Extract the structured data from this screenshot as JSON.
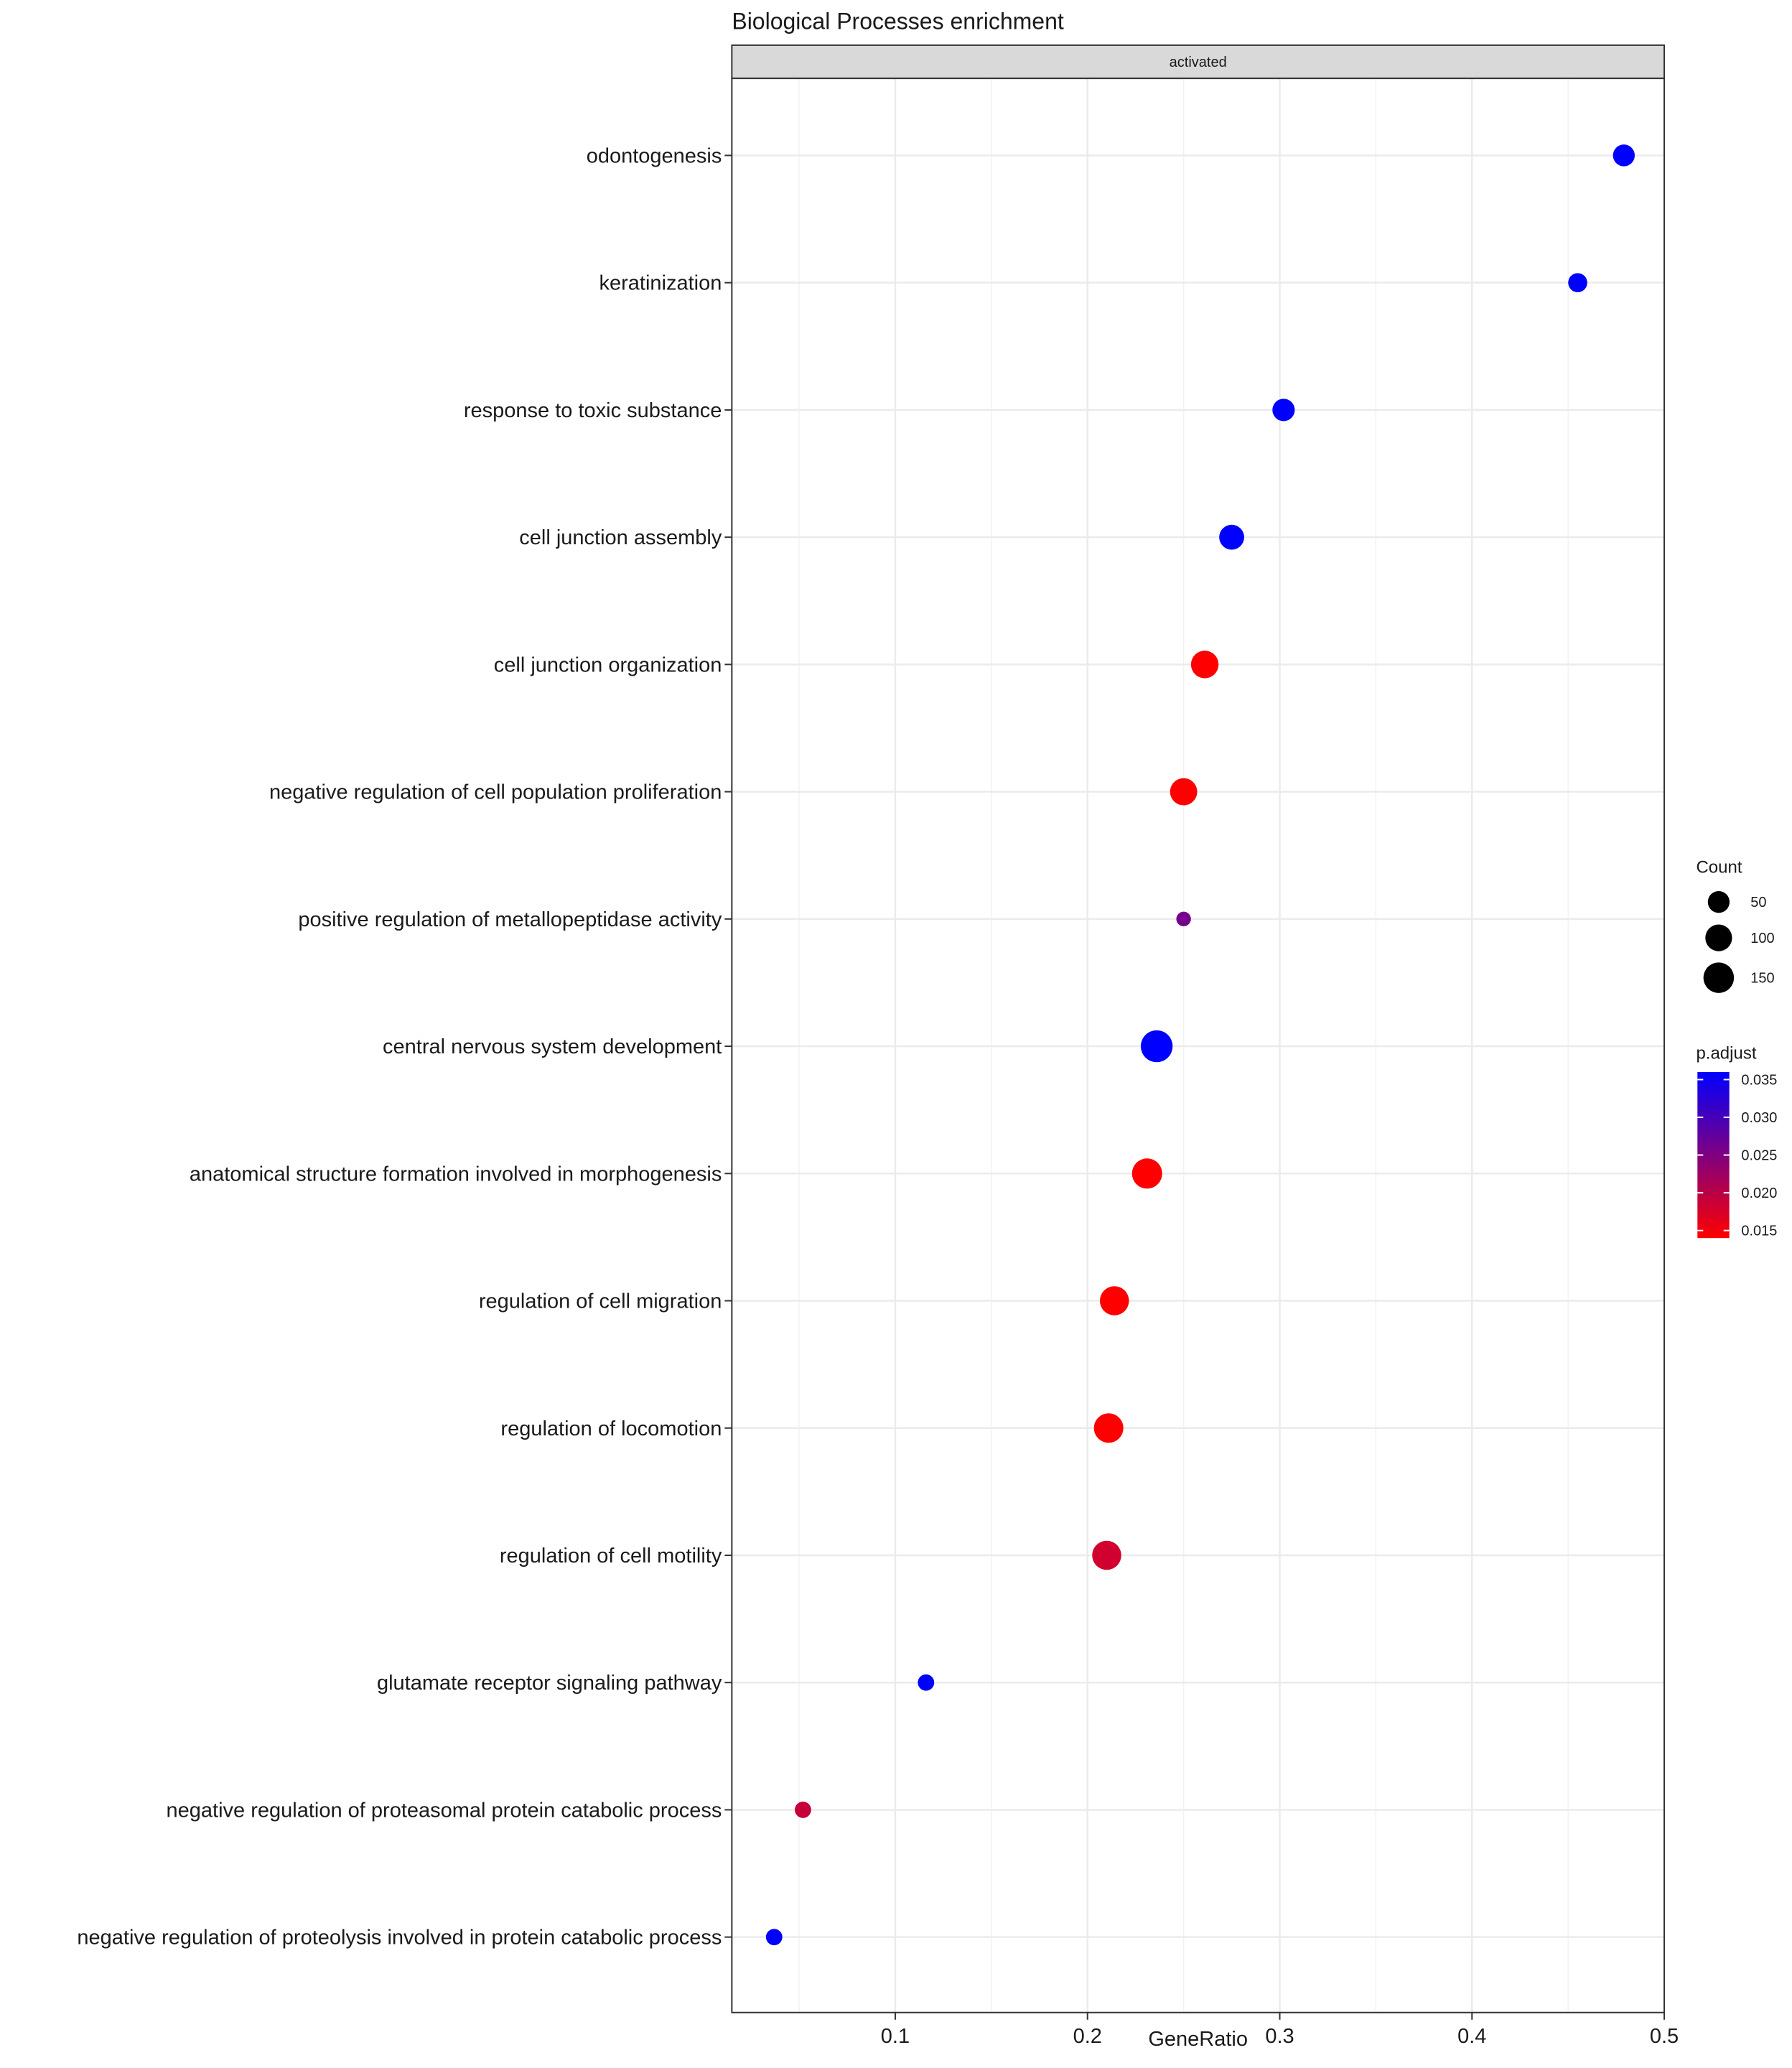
{
  "chart_data": {
    "type": "scatter",
    "title": "Biological Processes enrichment",
    "facet": "activated",
    "xlabel": "GeneRatio",
    "ylabel": "",
    "xlim": [
      0.015,
      0.5
    ],
    "xticks": [
      0.1,
      0.2,
      0.3,
      0.4,
      0.5
    ],
    "xtick_labels": [
      "0.1",
      "0.2",
      "0.3",
      "0.4",
      "0.5"
    ],
    "grid": true,
    "points": [
      {
        "term": "odontogenesis",
        "gene_ratio": 0.479,
        "count": 50,
        "p_adjust": 0.036
      },
      {
        "term": "keratinization",
        "gene_ratio": 0.455,
        "count": 30,
        "p_adjust": 0.036
      },
      {
        "term": "response to toxic substance",
        "gene_ratio": 0.302,
        "count": 55,
        "p_adjust": 0.036
      },
      {
        "term": "cell junction assembly",
        "gene_ratio": 0.275,
        "count": 80,
        "p_adjust": 0.036
      },
      {
        "term": "cell junction organization",
        "gene_ratio": 0.261,
        "count": 110,
        "p_adjust": 0.014
      },
      {
        "term": "negative regulation of cell population proliferation",
        "gene_ratio": 0.25,
        "count": 105,
        "p_adjust": 0.014
      },
      {
        "term": "positive regulation of metallopeptidase activity",
        "gene_ratio": 0.25,
        "count": 8,
        "p_adjust": 0.026
      },
      {
        "term": "central nervous system development",
        "gene_ratio": 0.236,
        "count": 170,
        "p_adjust": 0.036
      },
      {
        "term": "anatomical structure formation involved in morphogenesis",
        "gene_ratio": 0.231,
        "count": 145,
        "p_adjust": 0.014
      },
      {
        "term": "regulation of cell migration",
        "gene_ratio": 0.214,
        "count": 130,
        "p_adjust": 0.014
      },
      {
        "term": "regulation of locomotion",
        "gene_ratio": 0.211,
        "count": 135,
        "p_adjust": 0.014
      },
      {
        "term": "regulation of cell motility",
        "gene_ratio": 0.21,
        "count": 130,
        "p_adjust": 0.018
      },
      {
        "term": "glutamate receptor signaling pathway",
        "gene_ratio": 0.116,
        "count": 15,
        "p_adjust": 0.036
      },
      {
        "term": "negative regulation of proteasomal protein catabolic process",
        "gene_ratio": 0.052,
        "count": 15,
        "p_adjust": 0.019
      },
      {
        "term": "negative regulation of proteolysis involved in protein catabolic process",
        "gene_ratio": 0.037,
        "count": 15,
        "p_adjust": 0.036
      }
    ],
    "legend_size": {
      "title": "Count",
      "values": [
        50,
        100,
        150
      ],
      "labels": [
        "50",
        "100",
        "150"
      ]
    },
    "legend_color": {
      "title": "p.adjust",
      "range": [
        0.014,
        0.036
      ],
      "breaks": [
        0.035,
        0.03,
        0.025,
        0.02,
        0.015
      ],
      "labels": [
        "0.035",
        "0.030",
        "0.025",
        "0.020",
        "0.015"
      ],
      "low_color": "#ff0000",
      "high_color": "#0000ff"
    },
    "legend_position": "right"
  }
}
